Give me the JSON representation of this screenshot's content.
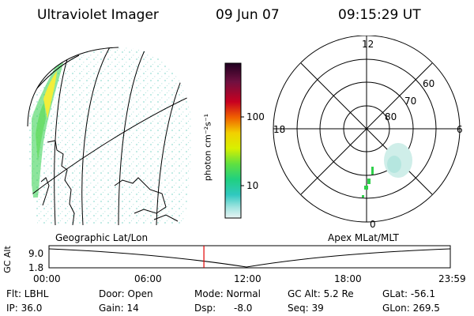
{
  "header": {
    "title": "Ultraviolet Imager",
    "date": "09 Jun 07",
    "time": "09:15:29 UT"
  },
  "colorbar": {
    "unit_label": "photon cm⁻²s⁻¹",
    "ticks": [
      "100",
      "10"
    ]
  },
  "polar": {
    "mlt_labels": {
      "top": "12",
      "left": "18",
      "right": "6",
      "bottom": "0"
    },
    "lat_labels": [
      "60",
      "70",
      "80"
    ]
  },
  "timeline": {
    "left_caption": "Geographic Lat/Lon",
    "right_caption": "Apex MLat/MLT",
    "y_axis_label": "GC Alt",
    "y_ticks": [
      "9.0",
      "1.8"
    ],
    "x_ticks": [
      "00:00",
      "06:00",
      "12:00",
      "18:00",
      "23:59"
    ],
    "current_time_hours": 9.258
  },
  "status": {
    "filter": "Flt: LBHL",
    "door": "Door: Open",
    "mode": "Mode: Normal",
    "gc_alt": "GC Alt: 5.2 Re",
    "glat": "GLat: -56.1",
    "ip": "IP: 36.0",
    "gain": "Gain: 14",
    "dsp_label": "Dsp:",
    "dsp_value": "-8.0",
    "seq": "Seq: 39",
    "glon": "GLon: 269.5"
  },
  "colors": {
    "marker": "#e00000",
    "aurora_bright": "#f2ee3a",
    "aurora_green": "#2fcf4a",
    "speckle": "#a9e4dc"
  }
}
